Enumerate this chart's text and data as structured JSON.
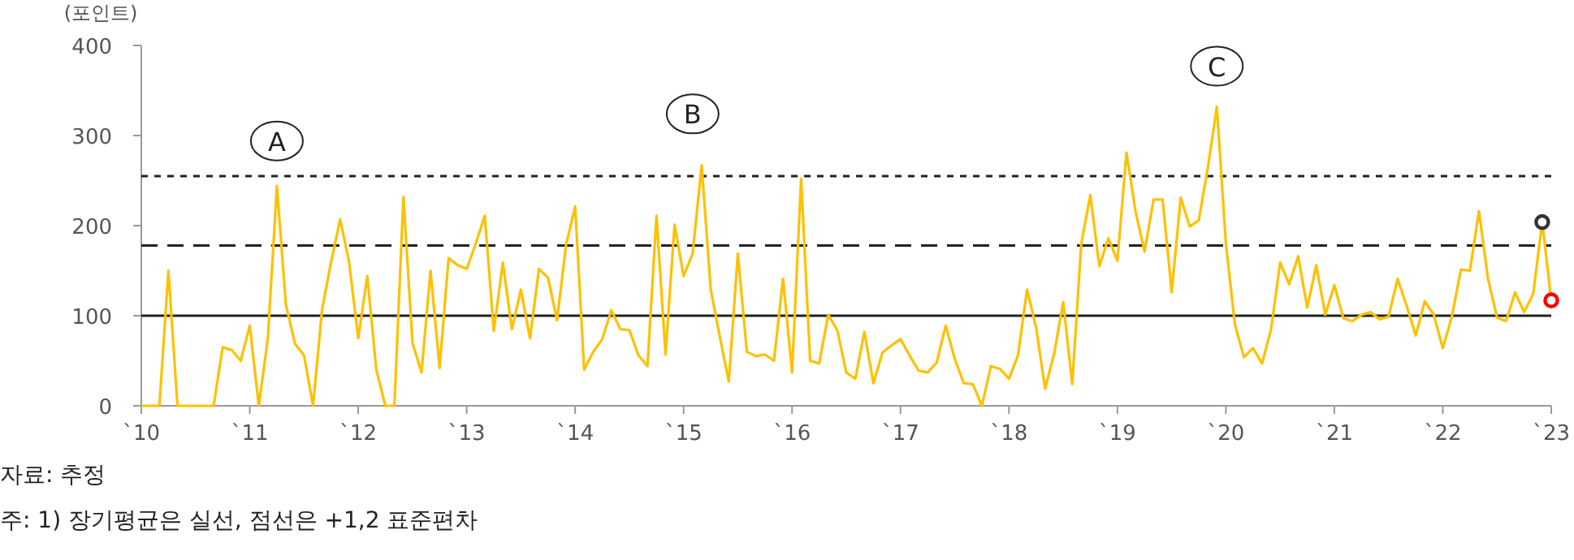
{
  "chart_data": {
    "type": "line",
    "ylabel": "(포인트)",
    "xlim": [
      "2010",
      "2023"
    ],
    "xticks": [
      {
        "value": "2010",
        "label": "`10"
      },
      {
        "value": "2011",
        "label": "`11"
      },
      {
        "value": "2012",
        "label": "`12"
      },
      {
        "value": "2013",
        "label": "`13"
      },
      {
        "value": "2014",
        "label": "`14"
      },
      {
        "value": "2015",
        "label": "`15"
      },
      {
        "value": "2016",
        "label": "`16"
      },
      {
        "value": "2017",
        "label": "`17"
      },
      {
        "value": "2018",
        "label": "`18"
      },
      {
        "value": "2019",
        "label": "`19"
      },
      {
        "value": "2020",
        "label": "`20"
      },
      {
        "value": "2021",
        "label": "`21"
      },
      {
        "value": "2022",
        "label": "`22"
      },
      {
        "value": "2023",
        "label": "`23"
      }
    ],
    "ylim": [
      0,
      400
    ],
    "yticks": [
      0,
      100,
      200,
      300,
      400
    ],
    "grid": false,
    "series": [
      {
        "color": "#ffc000",
        "x": [
          "2010-01",
          "2010-02",
          "2010-03",
          "2010-04",
          "2010-05",
          "2010-06",
          "2010-07",
          "2010-08",
          "2010-09",
          "2010-10",
          "2010-11",
          "2010-12",
          "2011-01",
          "2011-02",
          "2011-03",
          "2011-04",
          "2011-05",
          "2011-06",
          "2011-07",
          "2011-08",
          "2011-09",
          "2011-10",
          "2011-11",
          "2011-12",
          "2012-01",
          "2012-02",
          "2012-03",
          "2012-04",
          "2012-05",
          "2012-06",
          "2012-07",
          "2012-08",
          "2012-09",
          "2012-10",
          "2012-11",
          "2012-12",
          "2013-01",
          "2013-02",
          "2013-03",
          "2013-04",
          "2013-05",
          "2013-06",
          "2013-07",
          "2013-08",
          "2013-09",
          "2013-10",
          "2013-11",
          "2013-12",
          "2014-01",
          "2014-02",
          "2014-03",
          "2014-04",
          "2014-05",
          "2014-06",
          "2014-07",
          "2014-08",
          "2014-09",
          "2014-10",
          "2014-11",
          "2014-12",
          "2015-01",
          "2015-02",
          "2015-03",
          "2015-04",
          "2015-05",
          "2015-06",
          "2015-07",
          "2015-08",
          "2015-09",
          "2015-10",
          "2015-11",
          "2015-12",
          "2016-01",
          "2016-02",
          "2016-03",
          "2016-04",
          "2016-05",
          "2016-06",
          "2016-07",
          "2016-08",
          "2016-09",
          "2016-10",
          "2016-11",
          "2016-12",
          "2017-01",
          "2017-02",
          "2017-03",
          "2017-04",
          "2017-05",
          "2017-06",
          "2017-07",
          "2017-08",
          "2017-09",
          "2017-10",
          "2017-11",
          "2017-12",
          "2018-01",
          "2018-02",
          "2018-03",
          "2018-04",
          "2018-05",
          "2018-06",
          "2018-07",
          "2018-08",
          "2018-09",
          "2018-10",
          "2018-11",
          "2018-12",
          "2019-01",
          "2019-02",
          "2019-03",
          "2019-04",
          "2019-05",
          "2019-06",
          "2019-07",
          "2019-08",
          "2019-09",
          "2019-10",
          "2019-11",
          "2019-12",
          "2020-01",
          "2020-02",
          "2020-03",
          "2020-04",
          "2020-05",
          "2020-06",
          "2020-07",
          "2020-08",
          "2020-09",
          "2020-10",
          "2020-11",
          "2020-12",
          "2021-01",
          "2021-02",
          "2021-03",
          "2021-04",
          "2021-05",
          "2021-06",
          "2021-07",
          "2021-08",
          "2021-09",
          "2021-10",
          "2021-11",
          "2021-12",
          "2022-01",
          "2022-02",
          "2022-03",
          "2022-04",
          "2022-05",
          "2022-06",
          "2022-07",
          "2022-08",
          "2022-09",
          "2022-10",
          "2022-11",
          "2022-12",
          "2023-01"
        ],
        "values": [
          0,
          0,
          0,
          150,
          0,
          0,
          0,
          0,
          0,
          65,
          62,
          50,
          89,
          0,
          75,
          244,
          112,
          69,
          56,
          0,
          107,
          160,
          207,
          159,
          75,
          144,
          40,
          0,
          0,
          232,
          70,
          37,
          150,
          42,
          164,
          156,
          152,
          180,
          211,
          83,
          159,
          85,
          129,
          75,
          152,
          142,
          95,
          179,
          221,
          40,
          60,
          74,
          106,
          85,
          84,
          56,
          44,
          211,
          57,
          201,
          144,
          169,
          267,
          129,
          77,
          27,
          169,
          60,
          55,
          57,
          50,
          141,
          37,
          252,
          50,
          47,
          101,
          84,
          37,
          30,
          82,
          25,
          59,
          67,
          74,
          56,
          39,
          37,
          48,
          89,
          52,
          25,
          24,
          0,
          44,
          41,
          30,
          56,
          129,
          87,
          19,
          58,
          115,
          24,
          180,
          234,
          155,
          186,
          161,
          281,
          216,
          171,
          229,
          229,
          126,
          231,
          199,
          206,
          264,
          332,
          180,
          90,
          54,
          64,
          47,
          85,
          159,
          135,
          166,
          109,
          156,
          101,
          134,
          97,
          94,
          101,
          104,
          96,
          99,
          141,
          111,
          78,
          116,
          101,
          64,
          99,
          151,
          150,
          216,
          141,
          98,
          94,
          126,
          104,
          124,
          204,
          117
        ]
      },
      {
        "color": "#333333",
        "marker": "circle",
        "x": [
          "2022-12"
        ],
        "values": [
          204
        ]
      },
      {
        "color": "#ff0000",
        "marker": "circle",
        "x": [
          "2023-01"
        ],
        "values": [
          117
        ]
      }
    ],
    "ref_lines": [
      {
        "axis": "y",
        "value": 100,
        "line_style": "solid",
        "color": "#222222"
      },
      {
        "axis": "y",
        "value": 178,
        "line_style": "dashed",
        "color": "#222222"
      },
      {
        "axis": "y",
        "value": 255,
        "line_style": "dotted",
        "color": "#222222"
      }
    ],
    "annotations": [
      {
        "text": "A",
        "x": "2011-04",
        "y": 294
      },
      {
        "text": "B",
        "x": "2015-02",
        "y": 324
      },
      {
        "text": "C",
        "x": "2019-12",
        "y": 377
      },
      "자료: 추정",
      "주: 1) 장기평균은 실선, 점선은 +1,2 표준편차"
    ]
  }
}
